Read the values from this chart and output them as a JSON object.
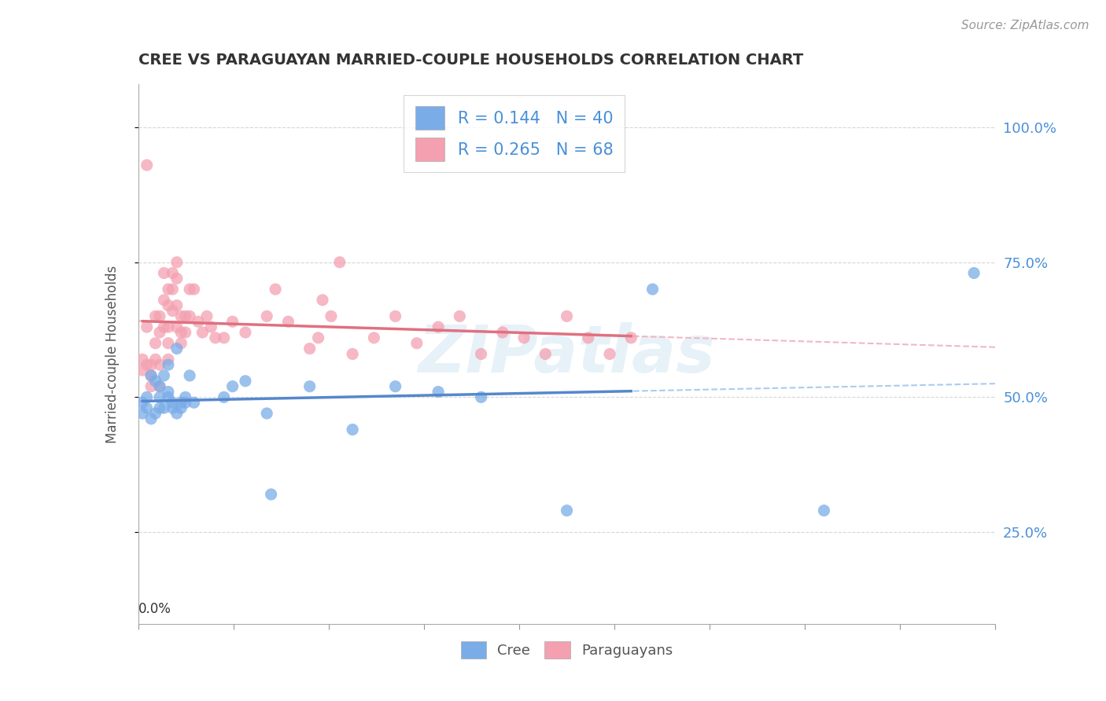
{
  "title": "CREE VS PARAGUAYAN MARRIED-COUPLE HOUSEHOLDS CORRELATION CHART",
  "source": "Source: ZipAtlas.com",
  "ylabel": "Married-couple Households",
  "ytick_labels": [
    "100.0%",
    "75.0%",
    "50.0%",
    "25.0%"
  ],
  "ytick_values": [
    1.0,
    0.75,
    0.5,
    0.25
  ],
  "xlim": [
    0.0,
    0.2
  ],
  "ylim": [
    0.08,
    1.08
  ],
  "cree_color": "#7aace8",
  "paraguayan_color": "#f4a0b0",
  "cree_line_color": "#5588cc",
  "paraguayan_line_color": "#e07080",
  "cree_R": 0.144,
  "cree_N": 40,
  "paraguayan_R": 0.265,
  "paraguayan_N": 68,
  "cree_scatter_x": [
    0.001,
    0.001,
    0.002,
    0.002,
    0.003,
    0.003,
    0.004,
    0.004,
    0.005,
    0.005,
    0.005,
    0.006,
    0.006,
    0.007,
    0.007,
    0.007,
    0.008,
    0.008,
    0.009,
    0.009,
    0.01,
    0.01,
    0.011,
    0.011,
    0.012,
    0.013,
    0.02,
    0.022,
    0.025,
    0.03,
    0.031,
    0.04,
    0.05,
    0.06,
    0.07,
    0.08,
    0.1,
    0.12,
    0.16,
    0.195
  ],
  "cree_scatter_y": [
    0.47,
    0.49,
    0.5,
    0.48,
    0.54,
    0.46,
    0.53,
    0.47,
    0.52,
    0.48,
    0.5,
    0.54,
    0.48,
    0.51,
    0.5,
    0.56,
    0.48,
    0.49,
    0.59,
    0.47,
    0.49,
    0.48,
    0.5,
    0.49,
    0.54,
    0.49,
    0.5,
    0.52,
    0.53,
    0.47,
    0.32,
    0.52,
    0.44,
    0.52,
    0.51,
    0.5,
    0.29,
    0.7,
    0.29,
    0.73
  ],
  "paraguayan_scatter_x": [
    0.001,
    0.001,
    0.002,
    0.002,
    0.002,
    0.003,
    0.003,
    0.003,
    0.004,
    0.004,
    0.004,
    0.005,
    0.005,
    0.005,
    0.005,
    0.006,
    0.006,
    0.006,
    0.007,
    0.007,
    0.007,
    0.007,
    0.007,
    0.008,
    0.008,
    0.008,
    0.009,
    0.009,
    0.009,
    0.009,
    0.01,
    0.01,
    0.01,
    0.011,
    0.011,
    0.012,
    0.012,
    0.013,
    0.014,
    0.015,
    0.016,
    0.017,
    0.018,
    0.02,
    0.022,
    0.025,
    0.03,
    0.032,
    0.035,
    0.04,
    0.042,
    0.043,
    0.045,
    0.047,
    0.05,
    0.055,
    0.06,
    0.065,
    0.07,
    0.075,
    0.08,
    0.085,
    0.09,
    0.095,
    0.1,
    0.105,
    0.11,
    0.115
  ],
  "paraguayan_scatter_y": [
    0.55,
    0.57,
    0.93,
    0.63,
    0.56,
    0.52,
    0.56,
    0.54,
    0.6,
    0.65,
    0.57,
    0.65,
    0.62,
    0.56,
    0.52,
    0.73,
    0.68,
    0.63,
    0.7,
    0.67,
    0.63,
    0.6,
    0.57,
    0.73,
    0.7,
    0.66,
    0.75,
    0.72,
    0.67,
    0.63,
    0.65,
    0.62,
    0.6,
    0.65,
    0.62,
    0.7,
    0.65,
    0.7,
    0.64,
    0.62,
    0.65,
    0.63,
    0.61,
    0.61,
    0.64,
    0.62,
    0.65,
    0.7,
    0.64,
    0.59,
    0.61,
    0.68,
    0.65,
    0.75,
    0.58,
    0.61,
    0.65,
    0.6,
    0.63,
    0.65,
    0.58,
    0.62,
    0.61,
    0.58,
    0.65,
    0.61,
    0.58,
    0.61
  ],
  "watermark": "ZIPatlas",
  "background_color": "#ffffff",
  "grid_color": "#cccccc",
  "legend_text_color": "#4a90d9",
  "right_ytick_color": "#4a90d9"
}
